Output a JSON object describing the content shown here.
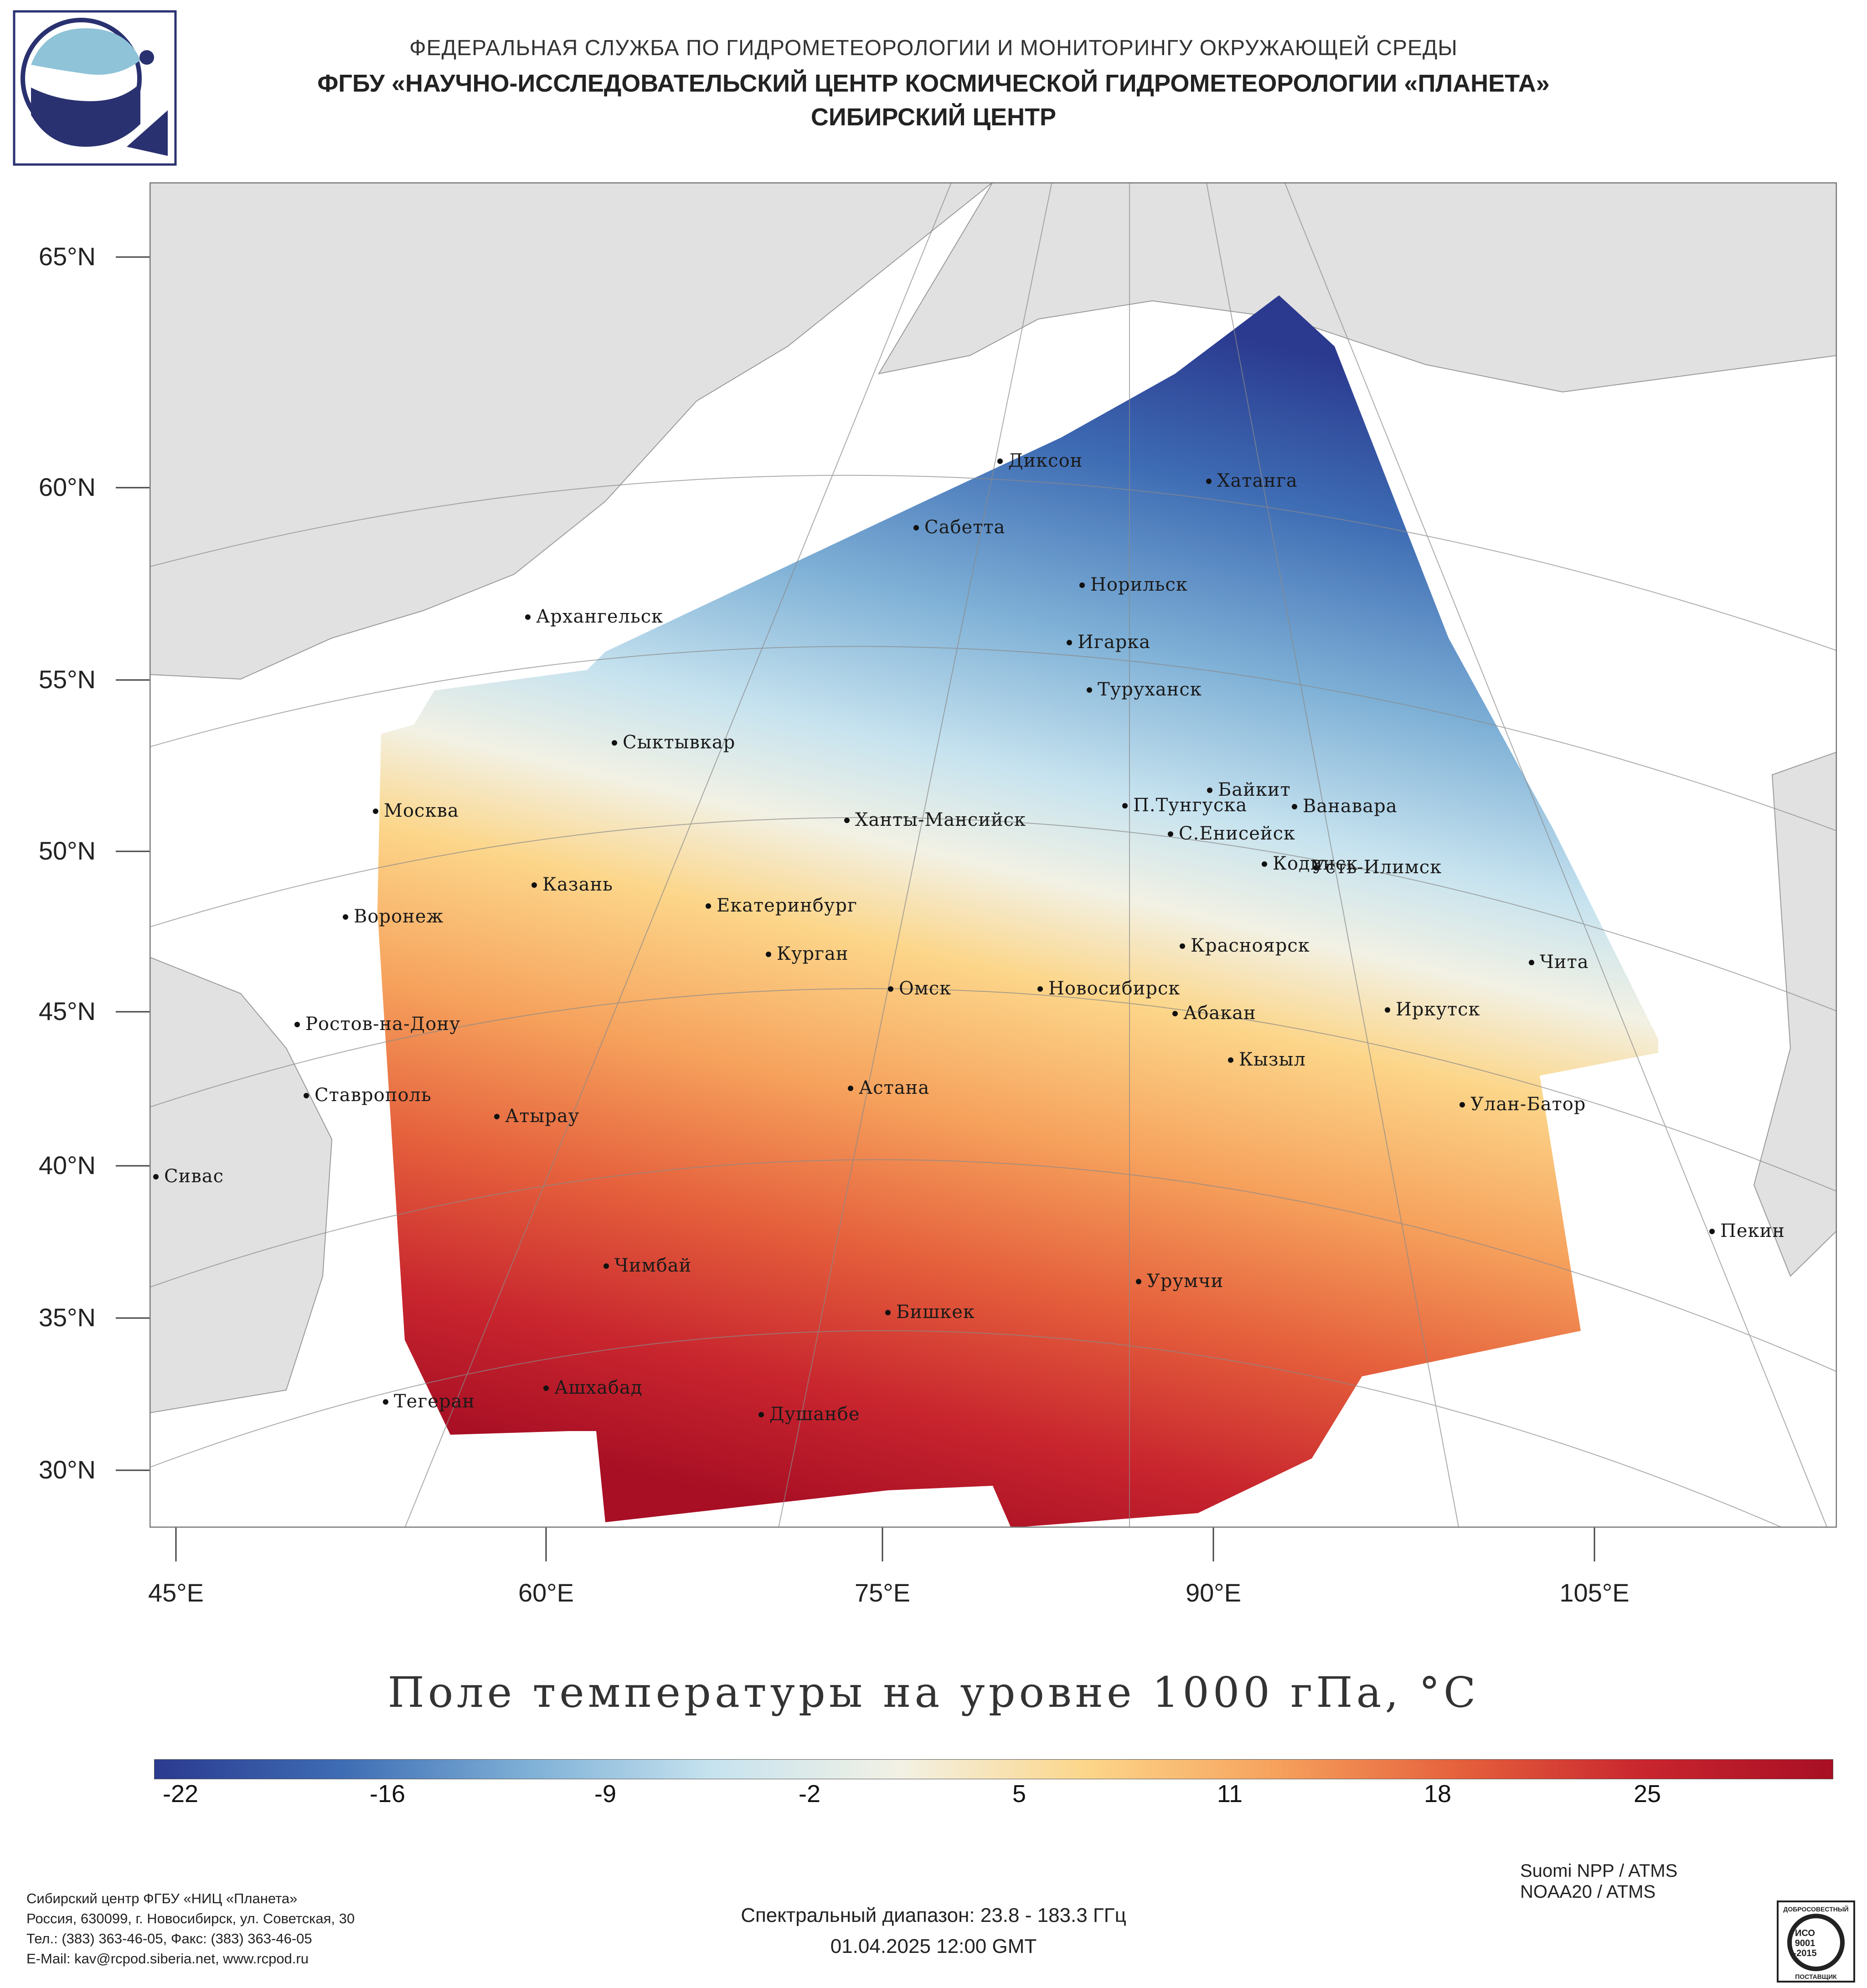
{
  "header": {
    "line1": "ФЕДЕРАЛЬНАЯ СЛУЖБА ПО ГИДРОМЕТЕОРОЛОГИИ И МОНИТОРИНГУ ОКРУЖАЮЩЕЙ СРЕДЫ",
    "line2": "ФГБУ «НАУЧНО-ИССЛЕДОВАТЕЛЬСКИЙ ЦЕНТР КОСМИЧЕСКОЙ ГИДРОМЕТЕОРОЛОГИИ «ПЛАНЕТА»",
    "line3": "СИБИРСКИЙ ЦЕНТР"
  },
  "map": {
    "lat_labels": [
      "65°N",
      "60°N",
      "55°N",
      "50°N",
      "45°N",
      "40°N",
      "35°N",
      "30°N"
    ],
    "lon_labels": [
      "45°E",
      "60°E",
      "75°E",
      "90°E",
      "105°E"
    ],
    "cities": [
      "Диксон",
      "Хатанга",
      "Сабетта",
      "Норильск",
      "Архангельск",
      "Игарка",
      "Туруханск",
      "Сыктывкар",
      "Байкит",
      "П.Тунгуска",
      "Ванавара",
      "Москва",
      "Ханты-Мансийск",
      "С.Енисейск",
      "Кодинск",
      "Усть-Илимск",
      "Казань",
      "Екатеринбург",
      "Воронеж",
      "Красноярск",
      "Курган",
      "Чита",
      "Омск",
      "Новосибирск",
      "Иркутск",
      "Ростов-на-Дону",
      "Абакан",
      "Кызыл",
      "Ставрополь",
      "Астана",
      "Улан-Батор",
      "Атырау",
      "Сивас",
      "Пекин",
      "Чимбай",
      "Урумчи",
      "Бишкек",
      "Ашхабад",
      "Тегеран",
      "Душанбе"
    ]
  },
  "title": "Поле температуры на уровне 1000 гПа, °C",
  "colorbar": {
    "ticks": [
      "-22",
      "-16",
      "-9",
      "-2",
      "5",
      "11",
      "18",
      "25"
    ],
    "colors": [
      "#2b3a8f",
      "#3e6cb4",
      "#7eb0d6",
      "#c7e3ef",
      "#f2f1e4",
      "#fcd68a",
      "#f6a25d",
      "#e5603c",
      "#c8252e",
      "#a80f24"
    ]
  },
  "footer": {
    "org_lines": [
      "Сибирский центр ФГБУ «НИЦ «Планета»",
      "Россия, 630099, г. Новосибирск, ул. Советская, 30",
      "Тел.: (383) 363-46-05, Факс: (383) 363-46-05",
      "E-Mail: kav@rcpod.siberia.net, www.rcpod.ru"
    ],
    "spectral": "Спектральный диапазон: 23.8 - 183.3 ГГц",
    "datetime": "01.04.2025 12:00 GMT",
    "satellites": [
      "Suomi NPP / ATMS",
      "NOAA20 / ATMS"
    ],
    "iso_badge": [
      "ДОБРОСОВЕСТНЫЙ",
      "ИСО",
      "9001",
      "-2015",
      "ПОСТАВЩИК"
    ]
  }
}
